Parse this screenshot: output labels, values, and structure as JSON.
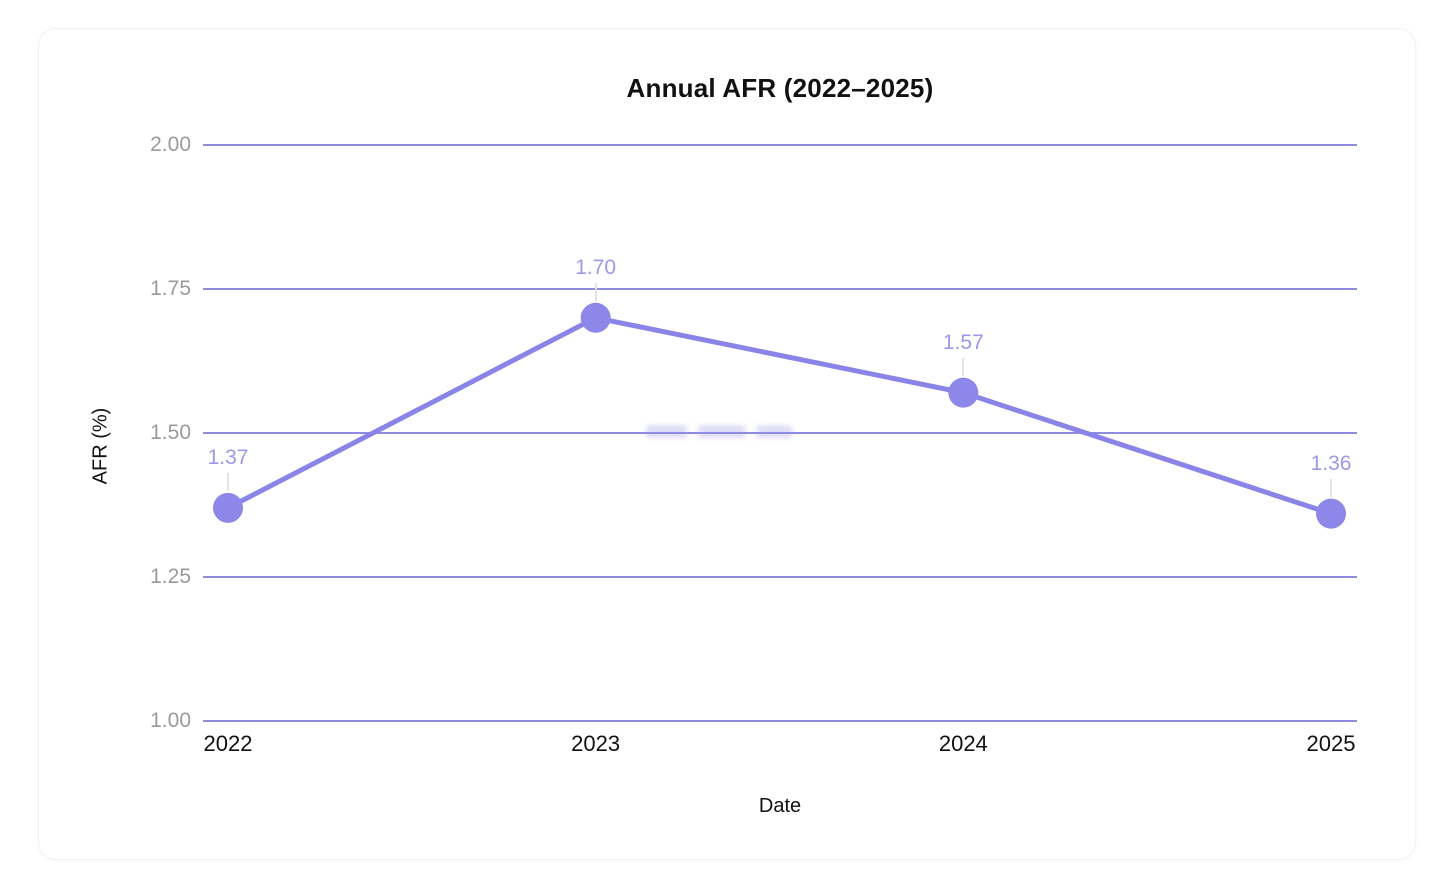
{
  "chart_data": {
    "type": "line",
    "title": "Annual AFR (2022–2025)",
    "xlabel": "Date",
    "ylabel": "AFR (%)",
    "categories": [
      "2022",
      "2023",
      "2024",
      "2025"
    ],
    "series": [
      {
        "name": "AFR",
        "values": [
          1.37,
          1.7,
          1.57,
          1.36
        ],
        "point_labels": [
          "1.37",
          "1.70",
          "1.57",
          "1.36"
        ]
      }
    ],
    "ylim": [
      1.0,
      2.0
    ],
    "yticks": [
      {
        "label": "2.00",
        "value": 2.0
      },
      {
        "label": "1.75",
        "value": 1.75
      },
      {
        "label": "1.50",
        "value": 1.5
      },
      {
        "label": "1.25",
        "value": 1.25
      },
      {
        "label": "1.00",
        "value": 1.0
      }
    ],
    "grid": "horizontal",
    "legend": "none",
    "colors": {
      "line": "#8a84e8",
      "point": "#8c87e9",
      "point_label": "#9b98ec",
      "gridline": "#8d8ce0",
      "ytick_text": "#9a9a9a",
      "xtick_text": "#111111",
      "title_text": "#111111",
      "connector": "#e3e3e3",
      "card_background": "#ffffff"
    }
  }
}
